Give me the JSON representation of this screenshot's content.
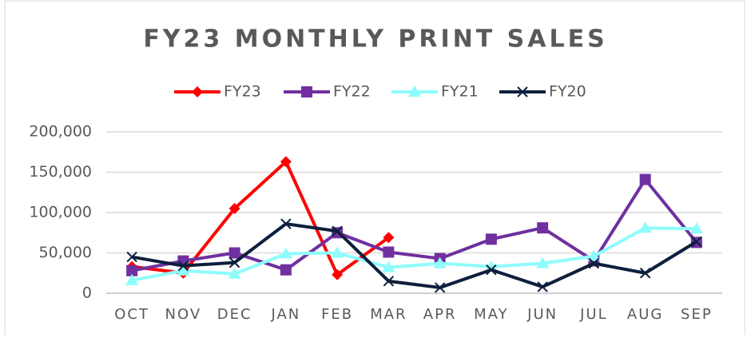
{
  "chart_data": {
    "type": "line",
    "title": "FY23 MONTHLY PRINT SALES",
    "categories": [
      "OCT",
      "NOV",
      "DEC",
      "JAN",
      "FEB",
      "MAR",
      "APR",
      "MAY",
      "JUN",
      "JUL",
      "AUG",
      "SEP"
    ],
    "series": [
      {
        "name": "FY23",
        "color": "#ff0000",
        "marker": "diamond",
        "values": [
          33000,
          25000,
          105000,
          163000,
          23000,
          69000,
          null,
          null,
          null,
          null,
          null,
          null
        ]
      },
      {
        "name": "FY22",
        "color": "#7030a0",
        "marker": "square",
        "values": [
          28000,
          40000,
          50000,
          29000,
          75000,
          51000,
          43000,
          67000,
          81000,
          40000,
          141000,
          63000
        ]
      },
      {
        "name": "FY21",
        "color": "#8ffcfc",
        "marker": "triangle",
        "values": [
          16000,
          28000,
          24000,
          49000,
          50000,
          32000,
          37000,
          33000,
          37000,
          46000,
          81000,
          80000
        ]
      },
      {
        "name": "FY20",
        "color": "#0d1f3c",
        "marker": "x",
        "values": [
          45000,
          34000,
          38000,
          86000,
          77000,
          15000,
          7000,
          29000,
          8000,
          37000,
          25000,
          64000
        ]
      }
    ],
    "ylim": [
      0,
      200000
    ],
    "yticks": [
      0,
      {
        "value": 50000,
        "label": "50,000"
      },
      {
        "value": 100000,
        "label": "100,000"
      },
      {
        "value": 150000,
        "label": "150,000"
      },
      {
        "value": 200000,
        "label": "200,000"
      }
    ],
    "grid": true,
    "legend": "top"
  }
}
